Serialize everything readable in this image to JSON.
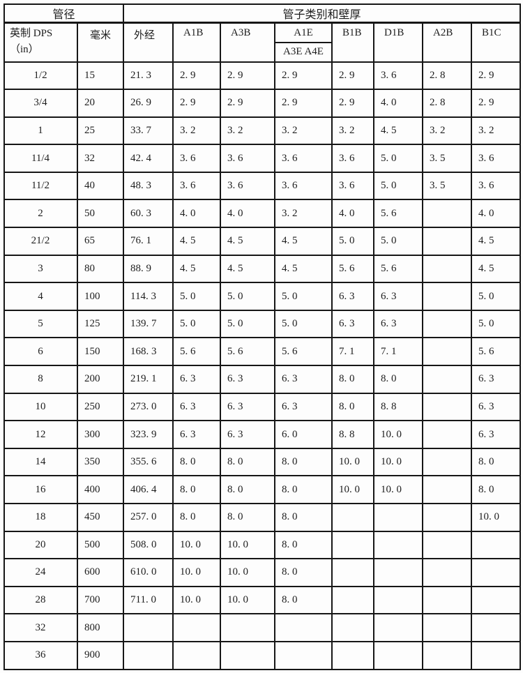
{
  "table": {
    "header": {
      "pipe_diameter_group": "管径",
      "pipe_class_group": "管子类别和壁厚",
      "inch_line1": "英制 DPS",
      "inch_line2": "（in）",
      "mm": "毫米",
      "outer_diameter": "外经",
      "a1b": "A1B",
      "a3b": "A3B",
      "a1e": "A1E",
      "a3e_a4e": "A3E A4E",
      "b1b": "B1B",
      "d1b": "D1B",
      "a2b": "A2B",
      "b1c": "B1C"
    },
    "rows": [
      [
        "1/2",
        "15",
        "21. 3",
        "2. 9",
        "2. 9",
        "2. 9",
        "2. 9",
        "3. 6",
        "2. 8",
        "2. 9"
      ],
      [
        "3/4",
        "20",
        "26. 9",
        "2. 9",
        "2. 9",
        "2. 9",
        "2. 9",
        "4. 0",
        "2. 8",
        "2. 9"
      ],
      [
        "1",
        "25",
        "33. 7",
        "3. 2",
        "3. 2",
        "3. 2",
        "3. 2",
        "4. 5",
        "3. 2",
        "3. 2"
      ],
      [
        "11/4",
        "32",
        "42. 4",
        "3. 6",
        "3. 6",
        "3. 6",
        "3. 6",
        "5. 0",
        "3. 5",
        "3. 6"
      ],
      [
        "11/2",
        "40",
        "48. 3",
        "3. 6",
        "3. 6",
        "3. 6",
        "3. 6",
        "5. 0",
        "3. 5",
        "3. 6"
      ],
      [
        "2",
        "50",
        "60. 3",
        "4. 0",
        "4. 0",
        "3. 2",
        "4. 0",
        "5. 6",
        "",
        "4. 0"
      ],
      [
        "21/2",
        "65",
        "76. 1",
        "4. 5",
        "4. 5",
        "4. 5",
        "5. 0",
        "5. 0",
        "",
        "4. 5"
      ],
      [
        "3",
        "80",
        "88. 9",
        "4. 5",
        "4. 5",
        "4. 5",
        "5. 6",
        "5. 6",
        "",
        "4. 5"
      ],
      [
        "4",
        "100",
        "114. 3",
        "5. 0",
        "5. 0",
        "5. 0",
        "6. 3",
        "6. 3",
        "",
        "5. 0"
      ],
      [
        "5",
        "125",
        "139. 7",
        "5. 0",
        "5. 0",
        "5. 0",
        "6. 3",
        "6. 3",
        "",
        "5. 0"
      ],
      [
        "6",
        "150",
        "168. 3",
        "5. 6",
        "5. 6",
        "5. 6",
        "7. 1",
        "7. 1",
        "",
        "5. 6"
      ],
      [
        "8",
        "200",
        "219. 1",
        "6. 3",
        "6. 3",
        "6. 3",
        "8. 0",
        "8. 0",
        "",
        "6. 3"
      ],
      [
        "10",
        "250",
        "273. 0",
        "6. 3",
        "6. 3",
        "6. 3",
        "8. 0",
        "8. 8",
        "",
        "6. 3"
      ],
      [
        "12",
        "300",
        "323. 9",
        "6. 3",
        "6. 3",
        "6. 0",
        "8. 8",
        "10. 0",
        "",
        "6. 3"
      ],
      [
        "14",
        "350",
        "355. 6",
        "8. 0",
        "8. 0",
        "8. 0",
        "10. 0",
        "10. 0",
        "",
        "8. 0"
      ],
      [
        "16",
        "400",
        "406. 4",
        "8. 0",
        "8. 0",
        "8. 0",
        "10. 0",
        "10. 0",
        "",
        "8. 0"
      ],
      [
        "18",
        "450",
        "257. 0",
        "8. 0",
        "8. 0",
        "8. 0",
        "",
        "",
        "",
        "10. 0"
      ],
      [
        "20",
        "500",
        "508. 0",
        "10. 0",
        "10. 0",
        "8. 0",
        "",
        "",
        "",
        ""
      ],
      [
        "24",
        "600",
        "610. 0",
        "10. 0",
        "10. 0",
        "8. 0",
        "",
        "",
        "",
        ""
      ],
      [
        "28",
        "700",
        "711. 0",
        "10. 0",
        "10. 0",
        "8. 0",
        "",
        "",
        "",
        ""
      ],
      [
        "32",
        "800",
        "",
        "",
        "",
        "",
        "",
        "",
        "",
        ""
      ],
      [
        "36",
        "900",
        "",
        "",
        "",
        "",
        "",
        "",
        "",
        ""
      ]
    ]
  }
}
